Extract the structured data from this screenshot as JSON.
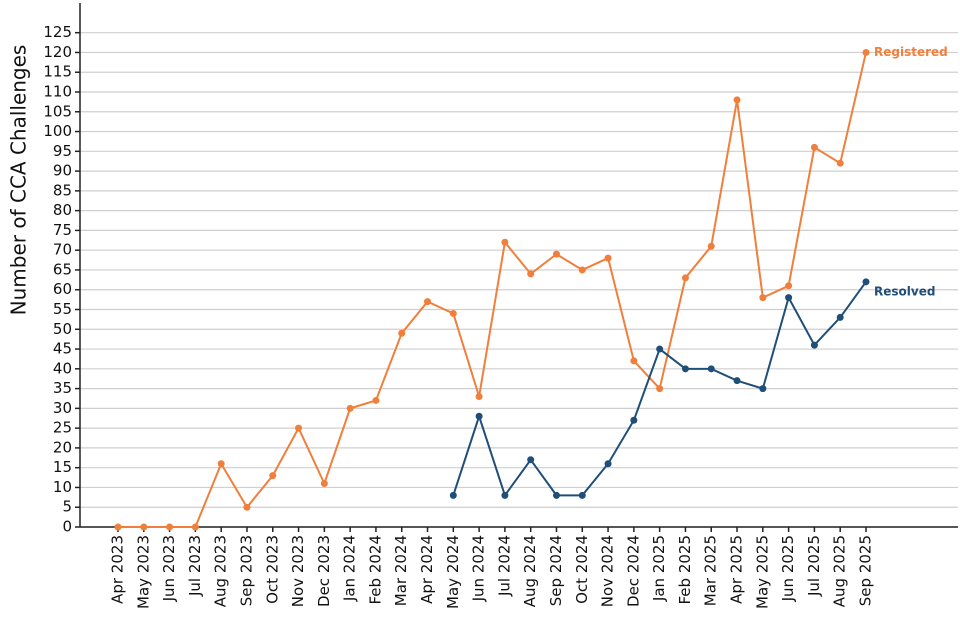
{
  "chart_data": {
    "type": "line",
    "ylabel": "Number of CCA Challenges",
    "categories": [
      "Apr 2023",
      "May 2023",
      "Jun 2023",
      "Jul 2023",
      "Aug 2023",
      "Sep 2023",
      "Oct 2023",
      "Nov 2023",
      "Dec 2023",
      "Jan 2024",
      "Feb 2024",
      "Mar 2024",
      "Apr 2024",
      "May 2024",
      "Jun 2024",
      "Jul 2024",
      "Aug 2024",
      "Sep 2024",
      "Oct 2024",
      "Nov 2024",
      "Dec 2024",
      "Jan 2025",
      "Feb 2025",
      "Mar 2025",
      "Apr 2025",
      "May 2025",
      "Jun 2025",
      "Jul 2025",
      "Aug 2025",
      "Sep 2025"
    ],
    "series": [
      {
        "name": "Registered",
        "color": "#f07f3c",
        "values": [
          0,
          0,
          0,
          0,
          16,
          5,
          13,
          25,
          11,
          30,
          32,
          49,
          57,
          54,
          33,
          72,
          64,
          69,
          65,
          68,
          42,
          35,
          63,
          71,
          108,
          58,
          61,
          96,
          92,
          120
        ]
      },
      {
        "name": "Resolved",
        "color": "#1f4e79",
        "values": [
          null,
          null,
          null,
          null,
          null,
          null,
          null,
          null,
          null,
          null,
          null,
          null,
          null,
          8,
          28,
          8,
          17,
          8,
          8,
          16,
          27,
          45,
          40,
          40,
          37,
          35,
          58,
          46,
          53,
          62
        ]
      }
    ],
    "ylim": [
      0,
      132
    ],
    "yticks": [
      0,
      5,
      10,
      15,
      20,
      25,
      30,
      35,
      40,
      45,
      50,
      55,
      60,
      65,
      70,
      75,
      80,
      85,
      90,
      95,
      100,
      105,
      110,
      115,
      120,
      125
    ],
    "grid": true
  }
}
